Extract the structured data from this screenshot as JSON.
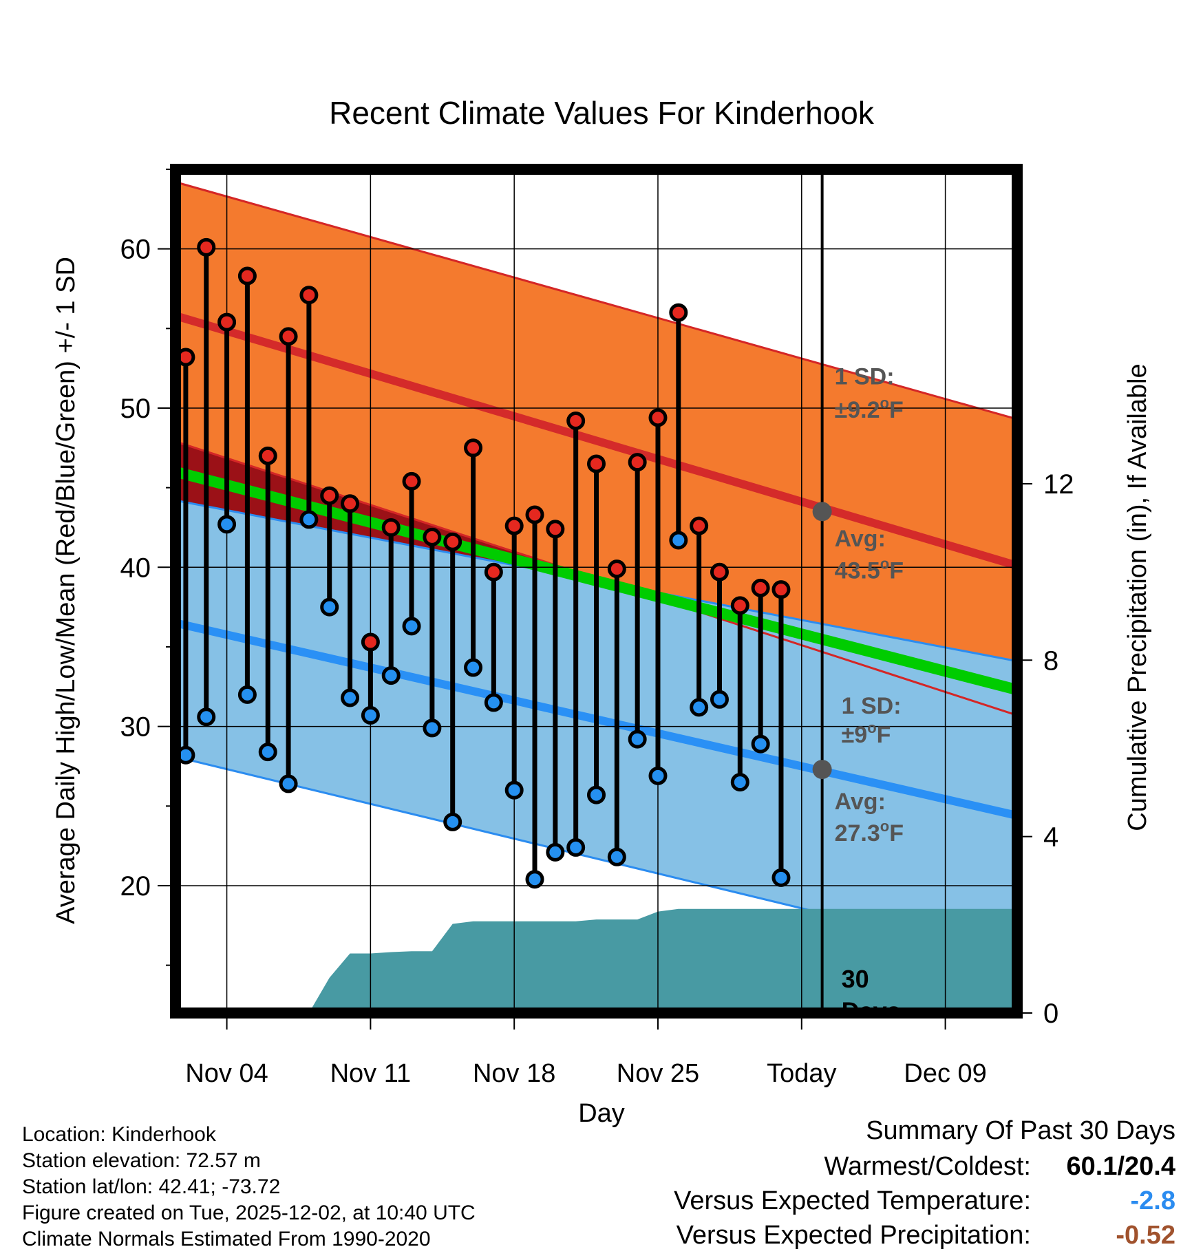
{
  "chart_data": {
    "type": "line",
    "title": "Recent Climate Values For Kinderhook",
    "xlabel": "Day",
    "ylabel": "Average Daily High/Low/Mean (Red/Blue/Green) +/- 1 SD",
    "y2label": "Cumulative Precipitation (in), If Available",
    "ylim": [
      12,
      65
    ],
    "y2lim": [
      0,
      19.13
    ],
    "xlim": [
      1.5,
      42.5
    ],
    "today_day": 33,
    "x_ticks": [
      {
        "day": 4,
        "label": "Nov 04"
      },
      {
        "day": 11,
        "label": "Nov 11"
      },
      {
        "day": 18,
        "label": "Nov 18"
      },
      {
        "day": 25,
        "label": "Nov 25"
      },
      {
        "day": 32,
        "label": "Today"
      },
      {
        "day": 39,
        "label": "Dec 09"
      }
    ],
    "y_ticks": [
      20,
      30,
      40,
      50,
      60
    ],
    "y2_ticks": [
      0,
      4,
      8,
      12
    ],
    "normals": {
      "high_avg": [
        55.8,
        40.1
      ],
      "high_upper": [
        64.2,
        49.3
      ],
      "high_lower": [
        47.9,
        30.7
      ],
      "low_avg": [
        36.5,
        24.4
      ],
      "low_upper": [
        44.2,
        34.1
      ],
      "low_lower": [
        28.1,
        15.3
      ],
      "mean_avg": [
        46.0,
        32.3
      ]
    },
    "daily_x": [
      2,
      3,
      4,
      5,
      6,
      7,
      8,
      9,
      10,
      11,
      12,
      13,
      14,
      15,
      16,
      17,
      18,
      19,
      20,
      21,
      22,
      23,
      24,
      25,
      26,
      27,
      28,
      29,
      30,
      31
    ],
    "series": [
      {
        "name": "Daily High",
        "color": "#e5281f",
        "values": [
          53.2,
          60.1,
          55.4,
          58.3,
          47.0,
          54.5,
          57.1,
          44.5,
          44.0,
          35.3,
          42.5,
          45.4,
          41.9,
          41.6,
          47.5,
          39.7,
          42.6,
          43.3,
          42.4,
          49.2,
          46.5,
          39.9,
          46.6,
          49.4,
          56.0,
          42.6,
          39.7,
          37.6,
          38.7,
          38.6
        ]
      },
      {
        "name": "Daily Low",
        "color": "#2590f0",
        "values": [
          28.2,
          30.6,
          42.7,
          32.0,
          28.4,
          26.4,
          43.0,
          37.5,
          31.8,
          30.7,
          33.2,
          36.3,
          29.9,
          24.0,
          33.7,
          31.5,
          26.0,
          20.4,
          22.1,
          22.4,
          25.7,
          21.8,
          29.2,
          26.9,
          41.7,
          31.2,
          31.7,
          26.5,
          28.9,
          20.5
        ]
      }
    ],
    "precip_days": [
      8,
      9,
      10,
      11,
      12,
      13,
      14,
      15,
      16,
      17,
      18,
      19,
      20,
      21,
      22,
      23,
      24,
      25,
      26,
      27,
      28,
      29,
      30,
      31,
      32,
      42.5
    ],
    "precip_cumulative": [
      0,
      0.8,
      1.35,
      1.35,
      1.38,
      1.4,
      1.4,
      2.02,
      2.08,
      2.08,
      2.08,
      2.08,
      2.08,
      2.08,
      2.12,
      2.12,
      2.12,
      2.3,
      2.36,
      2.36,
      2.36,
      2.36,
      2.36,
      2.36,
      2.36,
      2.36
    ],
    "annotations": {
      "high_sd_label": "1 SD:",
      "high_sd_value": "±9.2",
      "high_avg_label": "Avg:",
      "high_avg_value": "43.5",
      "high_avg_today": 43.5,
      "low_sd_label": "1 SD:",
      "low_sd_value": "±9",
      "low_avg_label": "Avg:",
      "low_avg_value": "27.3",
      "low_avg_today": 27.3,
      "unit_degree": "o",
      "unit_f": "F",
      "days_count": "30",
      "days_word": "Days"
    },
    "colors": {
      "high_band": "#f47a2e",
      "high_edge": "#d42626",
      "high_avg": "#d42a2a",
      "low_band": "#86c1e6",
      "low_edge": "#2b8cf0",
      "low_avg": "#2a90f5",
      "mean": "#00cc00",
      "overlap": "#9b1117",
      "precip": "#489aa3",
      "marker_outline": "#000000",
      "avg_dot": "#555555"
    }
  },
  "footer": {
    "location": "Location: Kinderhook",
    "elevation": "Station elevation: 72.57 m",
    "latlon": "Station lat/lon: 42.41; -73.72",
    "created": "Figure created on Tue, 2025-12-02, at 10:40 UTC",
    "normals": "Climate Normals Estimated From 1990-2020"
  },
  "summary": {
    "title": "Summary Of Past 30 Days",
    "warmest_label": "Warmest/Coldest:",
    "warmest_value": "60.1/20.4",
    "temp_label": "Versus Expected Temperature:",
    "temp_value": "-2.8",
    "temp_color": "#2b8cf0",
    "precip_label": "Versus Expected Precipitation:",
    "precip_value": "-0.52",
    "precip_color": "#a0522d"
  }
}
